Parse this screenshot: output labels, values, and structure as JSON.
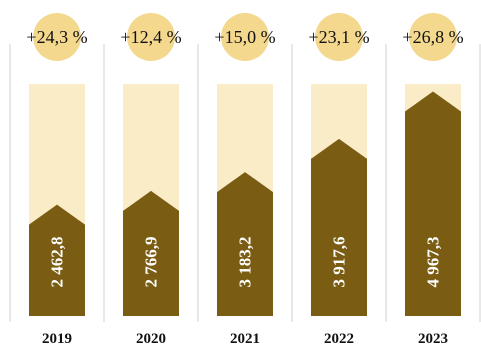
{
  "colors": {
    "bar": "#7a5c12",
    "background_column": "#fbecc8",
    "highlight_circle": "#f3d88e",
    "divider": "#d9d9d9",
    "text": "#111111",
    "value_text": "#ffffff"
  },
  "chart_data": {
    "type": "bar",
    "title": "",
    "xlabel": "",
    "ylabel": "",
    "categories": [
      "2019",
      "2020",
      "2021",
      "2022",
      "2023"
    ],
    "values": [
      2462.8,
      2766.9,
      3183.2,
      3917.6,
      4967.3
    ],
    "value_labels": [
      "2 462,8",
      "2 766,9",
      "3 183,2",
      "3 917,6",
      "4 967,3"
    ],
    "growth_labels": [
      "+24,3 %",
      "+12,4 %",
      "+15,0 %",
      "+23,1 %",
      "+26,8 %"
    ],
    "ylim": [
      0,
      5000
    ],
    "grid": false,
    "legend": "none"
  }
}
